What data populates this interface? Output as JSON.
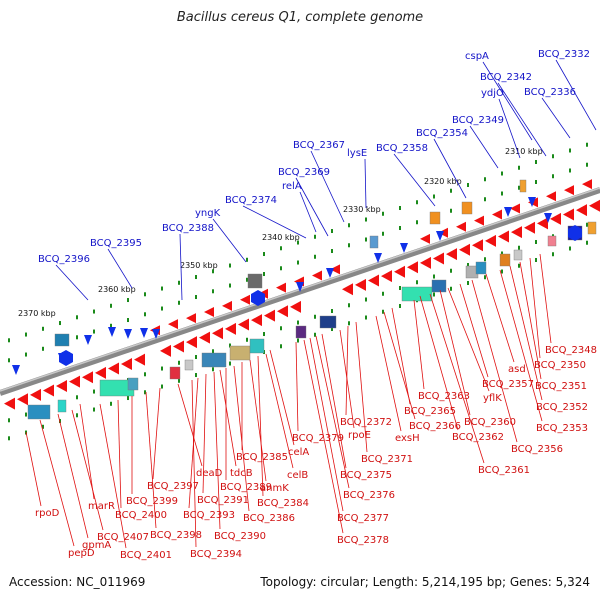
{
  "title": "Bacillus cereus Q1, complete genome",
  "accession_text": "Accession: NC_011969",
  "stats_text": "Topology: circular; Length: 5,214,195 bp; Genes: 5,324",
  "colors": {
    "backbone": "#8a8a8a",
    "top_labels": "#1414c8",
    "bottom_labels": "#d01010",
    "dots": "#1a8a1a"
  },
  "ticks": [
    "2370 kbp",
    "2360 kbp",
    "2350 kbp",
    "2340 kbp",
    "2330 kbp",
    "2320 kbp",
    "2310 kbp"
  ],
  "top_labels": [
    "BCQ_2396",
    "BCQ_2395",
    "BCQ_2388",
    "yngK",
    "BCQ_2374",
    "BCQ_2369",
    "relA",
    "BCQ_2367",
    "lysE",
    "BCQ_2358",
    "BCQ_2354",
    "BCQ_2349",
    "ydjO",
    "BCQ_2342",
    "cspA",
    "BCQ_2336",
    "BCQ_2332"
  ],
  "bottom_labels": [
    "rpoD",
    "pepD",
    "gpmA",
    "BCQ_2407",
    "marR",
    "BCQ_2401",
    "BCQ_2400",
    "BCQ_2399",
    "BCQ_2398",
    "BCQ_2397",
    "deaD",
    "BCQ_2394",
    "BCQ_2393",
    "BCQ_2391",
    "BCQ_2390",
    "tdcB",
    "BCQ_2389",
    "BCQ_2386",
    "BCQ_2385",
    "anmK",
    "BCQ_2384",
    "celB",
    "celA",
    "BCQ_2379",
    "BCQ_2378",
    "BCQ_2377",
    "BCQ_2376",
    "BCQ_2375",
    "rpoE",
    "BCQ_2372",
    "BCQ_2371",
    "exsH",
    "BCQ_2366",
    "BCQ_2365",
    "BCQ_2363",
    "BCQ_2362",
    "BCQ_2361",
    "BCQ_2360",
    "yflK",
    "BCQ_2357",
    "BCQ_2356",
    "asd",
    "BCQ_2353",
    "BCQ_2352",
    "BCQ_2351",
    "BCQ_2350",
    "BCQ_2348"
  ]
}
